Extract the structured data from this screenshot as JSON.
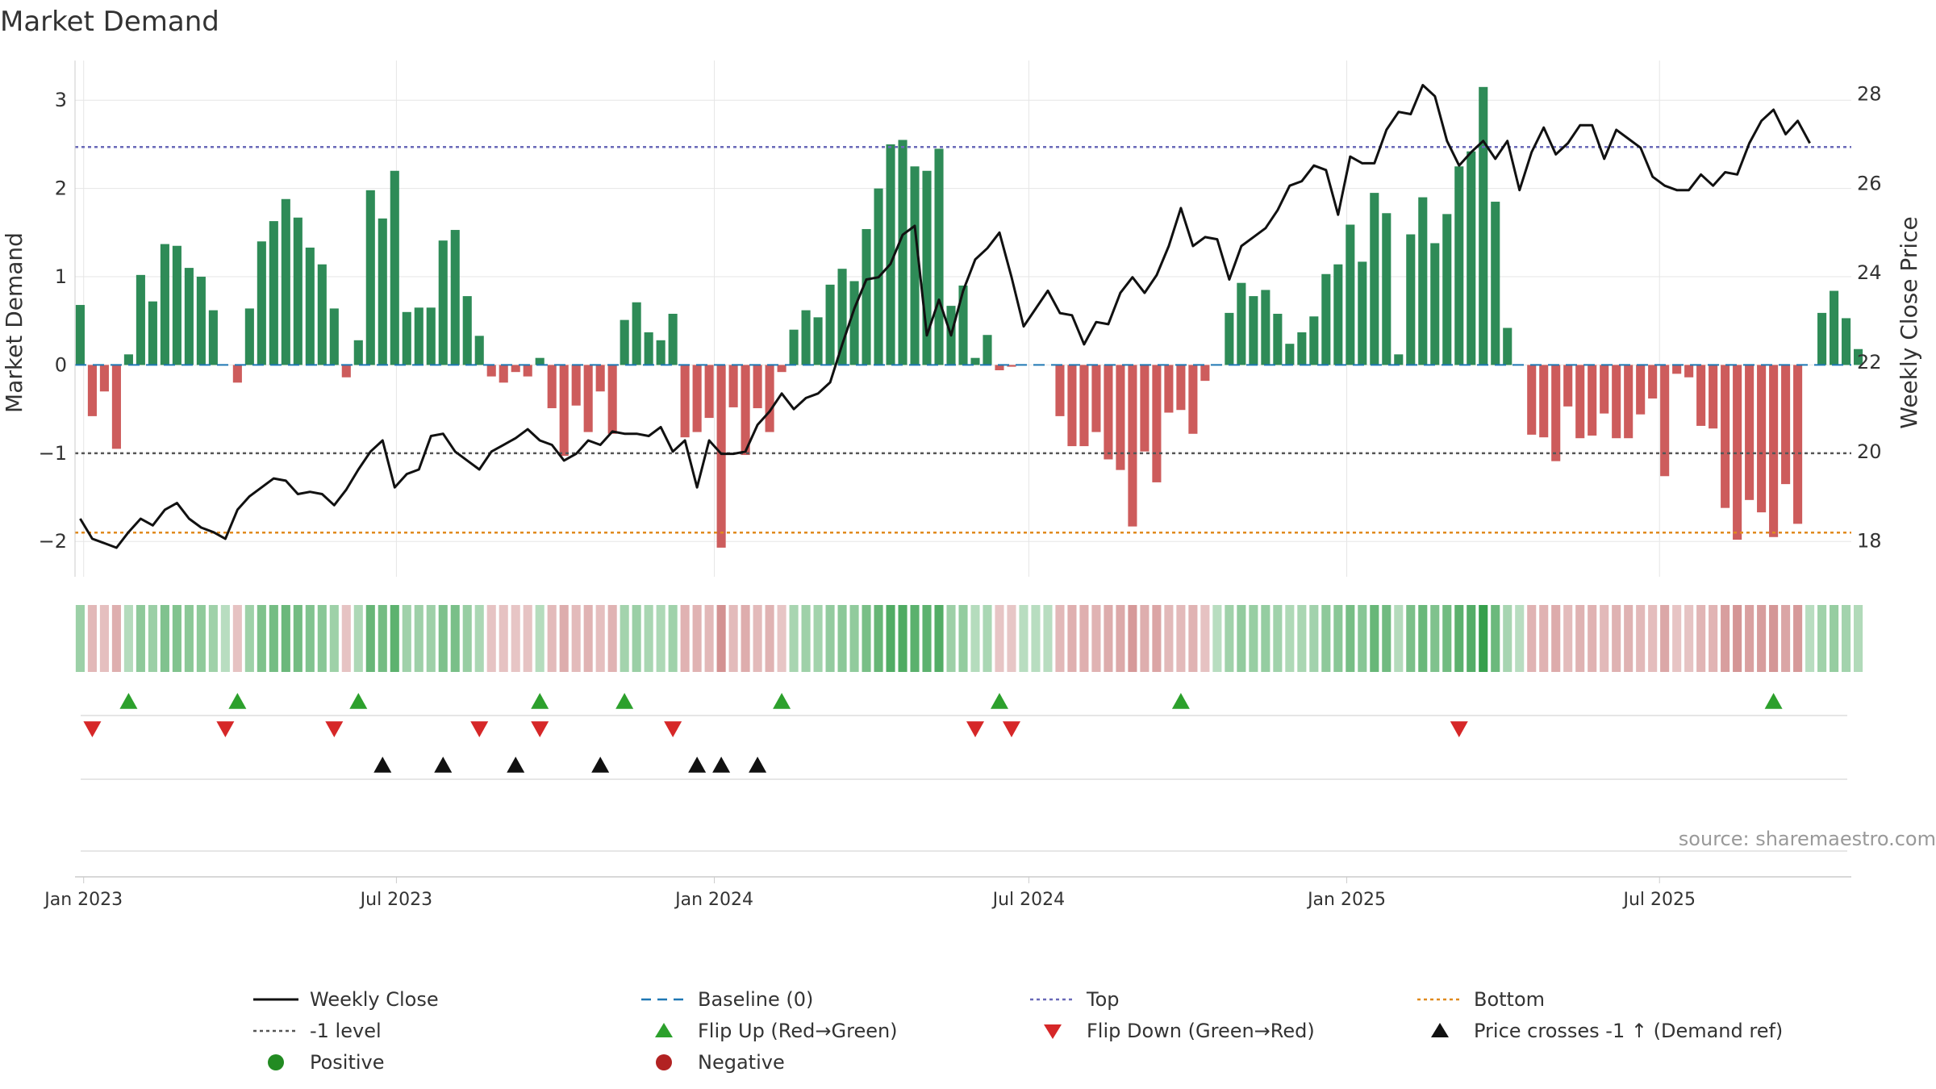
{
  "chart_data": {
    "type": "bar",
    "title": "Market Demand",
    "ylabel": "Market Demand",
    "y2label": "Weekly Close Price",
    "ylim": [
      -2.4,
      3.45
    ],
    "y2lim": [
      17.2,
      28.75
    ],
    "xlim": [
      "2022-12-27",
      "2025-10-20"
    ],
    "yticks": [
      -2,
      -1,
      0,
      1,
      2,
      3
    ],
    "y2ticks": [
      18,
      20,
      22,
      24,
      26,
      28
    ],
    "xticks": [
      {
        "date": "2023-01-01",
        "label": "Jan 2023"
      },
      {
        "date": "2023-07-01",
        "label": "Jul 2023"
      },
      {
        "date": "2024-01-01",
        "label": "Jan 2024"
      },
      {
        "date": "2024-07-01",
        "label": "Jul 2024"
      },
      {
        "date": "2025-01-01",
        "label": "Jan 2025"
      },
      {
        "date": "2025-07-01",
        "label": "Jul 2025"
      }
    ],
    "start_date": "2022-12-30",
    "week_step_days": 7,
    "demand": [
      0.68,
      -0.58,
      -0.3,
      -0.95,
      0.12,
      1.02,
      0.72,
      1.37,
      1.35,
      1.1,
      1.0,
      0.62,
      0.0,
      -0.2,
      0.64,
      1.4,
      1.63,
      1.88,
      1.67,
      1.33,
      1.14,
      0.64,
      -0.14,
      0.28,
      1.98,
      1.66,
      2.2,
      0.6,
      0.65,
      0.65,
      1.41,
      1.53,
      0.78,
      0.33,
      -0.13,
      -0.2,
      -0.08,
      -0.13,
      0.08,
      -0.49,
      -1.03,
      -0.46,
      -0.76,
      -0.3,
      -0.78,
      0.51,
      0.71,
      0.37,
      0.28,
      0.58,
      -0.82,
      -0.76,
      -0.6,
      -2.07,
      -0.48,
      -1.02,
      -0.49,
      -0.76,
      -0.08,
      0.4,
      0.62,
      0.54,
      0.91,
      1.09,
      0.95,
      1.54,
      2.0,
      2.5,
      2.55,
      2.25,
      2.2,
      2.45,
      0.67,
      0.9,
      0.08,
      0.34,
      -0.06,
      -0.02,
      0.0,
      0.0,
      0.0,
      -0.58,
      -0.92,
      -0.92,
      -0.76,
      -1.07,
      -1.19,
      -1.83,
      -0.98,
      -1.33,
      -0.54,
      -0.51,
      -0.78,
      -0.18,
      0.0,
      0.59,
      0.93,
      0.78,
      0.85,
      0.58,
      0.24,
      0.37,
      0.55,
      1.03,
      1.14,
      1.59,
      1.17,
      1.95,
      1.72,
      0.12,
      1.48,
      1.9,
      1.38,
      1.71,
      2.25,
      2.42,
      3.15,
      1.85,
      0.42,
      0.0,
      -0.79,
      -0.82,
      -1.09,
      -0.47,
      -0.83,
      -0.8,
      -0.55,
      -0.83,
      -0.83,
      -0.56,
      -0.38,
      -1.26,
      -0.1,
      -0.14,
      -0.69,
      -0.72,
      -1.62,
      -1.98,
      -1.53,
      -1.67,
      -1.95,
      -1.35,
      -1.8,
      0.0,
      0.59,
      0.84,
      0.53,
      0.18
    ],
    "close": [
      18.5,
      18.05,
      17.95,
      17.85,
      18.2,
      18.5,
      18.35,
      18.7,
      18.85,
      18.5,
      18.3,
      18.2,
      18.05,
      18.7,
      19.0,
      19.2,
      19.4,
      19.35,
      19.05,
      19.1,
      19.05,
      18.8,
      19.15,
      19.6,
      20.0,
      20.25,
      19.2,
      19.5,
      19.6,
      20.35,
      20.4,
      20.0,
      19.8,
      19.6,
      20.0,
      20.15,
      20.3,
      20.5,
      20.25,
      20.15,
      19.8,
      19.95,
      20.25,
      20.15,
      20.45,
      20.4,
      20.4,
      20.35,
      20.55,
      20.0,
      20.25,
      19.2,
      20.25,
      19.95,
      19.95,
      20.0,
      20.6,
      20.9,
      21.3,
      20.95,
      21.2,
      21.3,
      21.55,
      22.4,
      23.2,
      23.85,
      23.9,
      24.2,
      24.85,
      25.05,
      22.6,
      23.4,
      22.6,
      23.6,
      24.3,
      24.55,
      24.9,
      23.9,
      22.8,
      23.2,
      23.6,
      23.1,
      23.05,
      22.4,
      22.9,
      22.85,
      23.55,
      23.9,
      23.55,
      23.95,
      24.6,
      25.45,
      24.6,
      24.8,
      24.75,
      23.85,
      24.6,
      24.8,
      25.0,
      25.4,
      25.95,
      26.05,
      26.4,
      26.3,
      25.3,
      26.6,
      26.45,
      26.45,
      27.2,
      27.6,
      27.55,
      28.2,
      27.95,
      26.95,
      26.4,
      26.7,
      26.95,
      26.55,
      26.95,
      25.85,
      26.7,
      27.25,
      26.65,
      26.9,
      27.3,
      27.3,
      26.55,
      27.2,
      27.0,
      26.8,
      26.15,
      25.95,
      25.85,
      25.85,
      26.2,
      25.95,
      26.25,
      26.2,
      26.9,
      27.4,
      27.65,
      27.1,
      27.4,
      26.9
    ],
    "lines": {
      "top": {
        "value": 2.47,
        "label": "Top"
      },
      "bottom": {
        "value": -1.9,
        "label": "Bottom"
      },
      "minus_one": {
        "value": -1.0,
        "label": "-1 level"
      },
      "baseline": {
        "value": 0,
        "label": "Baseline (0)"
      }
    },
    "flip_up_weeks": [
      4,
      13,
      23,
      38,
      45,
      58,
      76,
      91,
      140
    ],
    "flip_down_weeks": [
      1,
      12,
      21,
      33,
      38,
      49,
      74,
      77,
      114
    ],
    "price_cross_weeks": [
      25,
      30,
      36,
      43,
      51,
      53,
      56
    ],
    "legend": {
      "weekly_close": "Weekly Close",
      "baseline": "Baseline (0)",
      "top": "Top",
      "bottom": "Bottom",
      "minus_one": "-1 level",
      "flip_up": "Flip Up (Red→Green)",
      "flip_down": "Flip Down (Green→Red)",
      "price_cross": "Price crosses -1 ↑ (Demand ref)",
      "positive": "Positive",
      "negative": "Negative"
    },
    "source": "source: sharemaestro.com"
  },
  "colors": {
    "positive": "#2e8b57",
    "negative": "#cd5c5c",
    "close": "#111111",
    "top": "#6a6ab8",
    "bottom": "#e08a1e",
    "minus_one": "#555555",
    "baseline": "#1f77b4",
    "flip_up": "#2ca02c",
    "flip_down": "#d62728",
    "legend_positive": "#228b22",
    "legend_negative": "#b22222",
    "price_cross": "#111111",
    "grid": "#e6e6e6",
    "axis": "#cccccc",
    "text": "#333333"
  }
}
